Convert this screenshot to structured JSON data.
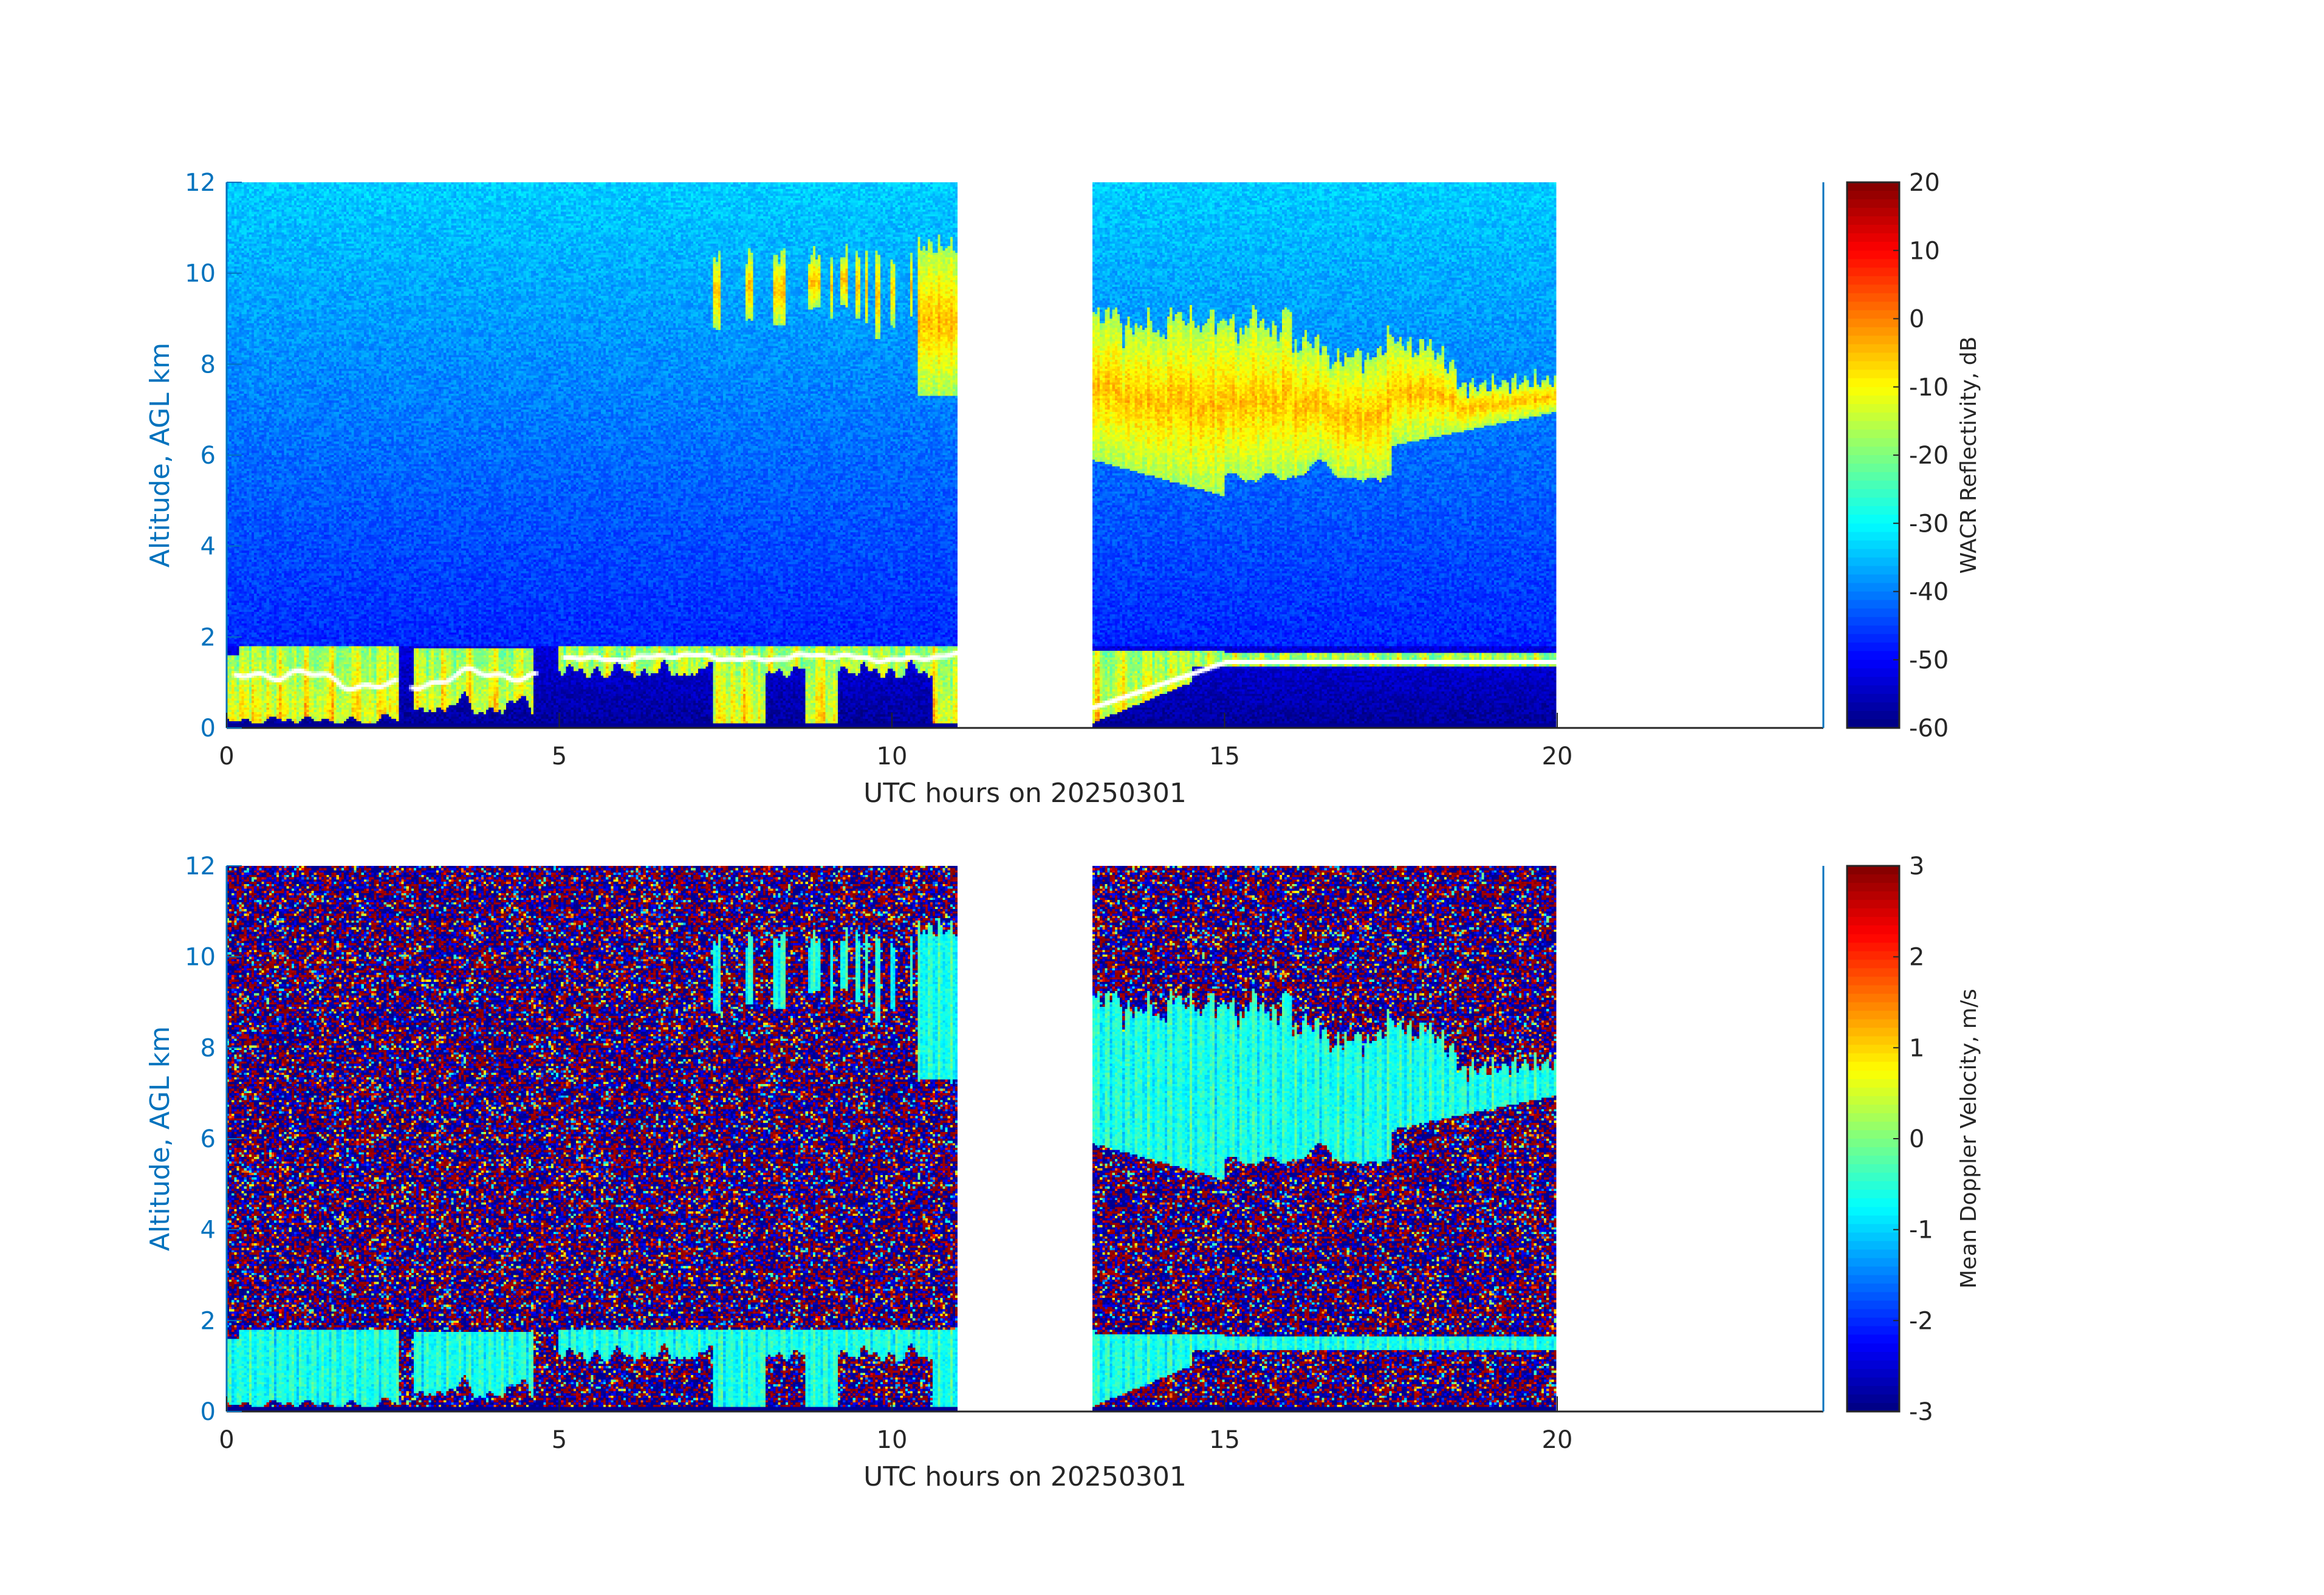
{
  "chart_data": [
    {
      "type": "heatmap",
      "xlabel": "UTC hours on 20250301",
      "ylabel": "Altitude, AGL km",
      "xlim": [
        0,
        24
      ],
      "ylim": [
        0,
        12
      ],
      "xticks": [
        0,
        5,
        10,
        15,
        20
      ],
      "yticks": [
        0,
        2,
        4,
        6,
        8,
        10,
        12
      ],
      "data_coverage_hours": [
        [
          0,
          11
        ],
        [
          13,
          20
        ]
      ],
      "colormap": "jet",
      "colorbar": {
        "label": "WACR Reflectivity, dB",
        "range": [
          -60,
          20
        ],
        "ticks": [
          20,
          10,
          0,
          -10,
          -20,
          -30,
          -40,
          -50,
          -60
        ]
      },
      "features": {
        "cloud_base_markers": "white dots near 1.5 km",
        "boundary_layer_cloud_km": [
          0,
          1.8
        ],
        "upper_cloud_km": [
          5,
          9.5
        ],
        "upper_cloud_hours": [
          13,
          20
        ]
      },
      "axis_color": "#0072BD"
    },
    {
      "type": "heatmap",
      "xlabel": "UTC hours on 20250301",
      "ylabel": "Altitude, AGL km",
      "xlim": [
        0,
        24
      ],
      "ylim": [
        0,
        12
      ],
      "xticks": [
        0,
        5,
        10,
        15,
        20
      ],
      "yticks": [
        0,
        2,
        4,
        6,
        8,
        10,
        12
      ],
      "data_coverage_hours": [
        [
          0,
          11
        ],
        [
          13,
          20
        ]
      ],
      "colormap": "jet",
      "colorbar": {
        "label": "Mean Doppler Velocity, m/s",
        "range": [
          -3,
          3
        ],
        "ticks": [
          3,
          2,
          1,
          0,
          -1,
          -2,
          -3
        ]
      },
      "axis_color": "#0072BD"
    }
  ]
}
